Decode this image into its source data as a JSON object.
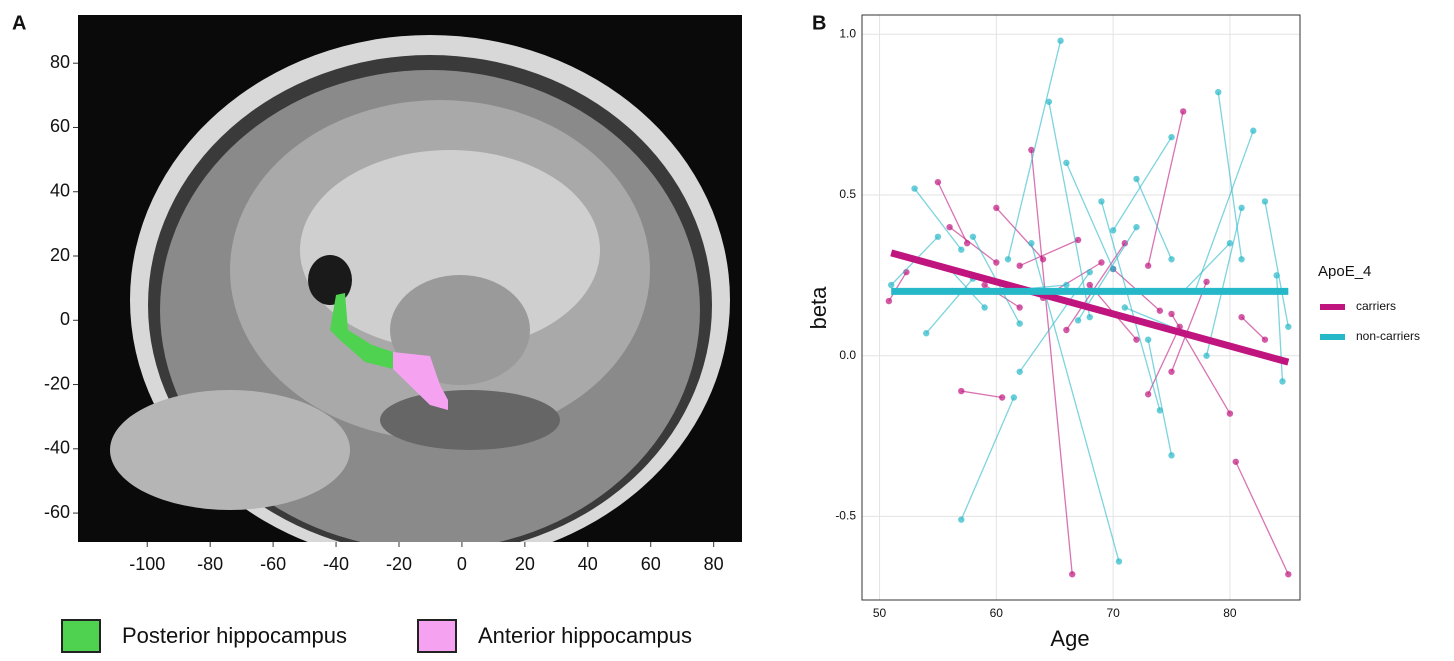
{
  "chart_data": [
    {
      "type": "image",
      "panel_label": "A",
      "xlim": [
        -122,
        89
      ],
      "ylim": [
        -69,
        95
      ],
      "xticks": [
        -100,
        -80,
        -60,
        -40,
        -20,
        0,
        20,
        40,
        60,
        80
      ],
      "yticks": [
        -60,
        -40,
        -20,
        0,
        20,
        40,
        60,
        80
      ],
      "regions": [
        {
          "name": "Posterior hippocampus",
          "color": "#4fd24f"
        },
        {
          "name": "Anterior hippocampus",
          "color": "#f5a3f0"
        }
      ]
    },
    {
      "type": "scatter",
      "panel_label": "B",
      "x_label": "Age",
      "y_label": "beta",
      "legend_title": "ApoE_4",
      "xlim": [
        48.5,
        86
      ],
      "ylim": [
        -0.76,
        1.06
      ],
      "xticks": [
        50,
        60,
        70,
        80
      ],
      "yticks": [
        -0.5,
        {
          "value": 0,
          "label": "0.0"
        },
        0.5,
        {
          "value": 1,
          "label": "1.0"
        }
      ],
      "grid": true,
      "series": [
        {
          "name": "carriers",
          "color": "#c0157f",
          "x": [
            50.8,
            52.3,
            55,
            57.5,
            57,
            60.5,
            60,
            64,
            59,
            62,
            66.5,
            63,
            66,
            71,
            68,
            72,
            62,
            67,
            75,
            80,
            76,
            73,
            80.5,
            85,
            81,
            83,
            64,
            69,
            78,
            75,
            70,
            74,
            73,
            75.7,
            56,
            60
          ],
          "values": [
            0.17,
            0.26,
            0.54,
            0.35,
            -0.11,
            -0.13,
            0.46,
            0.3,
            0.22,
            0.15,
            -0.68,
            0.64,
            0.08,
            0.35,
            0.22,
            0.05,
            0.28,
            0.36,
            0.13,
            -0.18,
            0.76,
            0.28,
            -0.33,
            -0.68,
            0.12,
            0.05,
            0.18,
            0.29,
            0.23,
            -0.05,
            0.27,
            0.14,
            -0.12,
            0.09,
            0.4,
            0.29
          ],
          "fit": {
            "x": [
              51,
              85
            ],
            "values": [
              0.32,
              -0.02
            ]
          }
        },
        {
          "name": "non-carriers",
          "color": "#26b8c8",
          "x": [
            65.5,
            61,
            57,
            61.5,
            79,
            81,
            75,
            70,
            64.5,
            68,
            82,
            77,
            70.5,
            63,
            75,
            73,
            51,
            55,
            53,
            57,
            58,
            62,
            60,
            66,
            67,
            72,
            72,
            75,
            69,
            74,
            83,
            85,
            84,
            84.5,
            76,
            80,
            62,
            68,
            56,
            59,
            66,
            70,
            78,
            81,
            71,
            77,
            54,
            58
          ],
          "values": [
            0.98,
            0.3,
            -0.51,
            -0.13,
            0.82,
            0.3,
            0.68,
            0.39,
            0.79,
            0.12,
            0.7,
            0.2,
            -0.64,
            0.35,
            -0.31,
            0.05,
            0.22,
            0.37,
            0.52,
            0.33,
            0.37,
            0.1,
            0.2,
            0.22,
            0.11,
            0.4,
            0.55,
            0.3,
            0.48,
            -0.17,
            0.48,
            0.09,
            0.25,
            -0.08,
            0.2,
            0.35,
            -0.05,
            0.26,
            0.27,
            0.15,
            0.6,
            0.27,
            0.0,
            0.46,
            0.15,
            0.06,
            0.07,
            0.24
          ],
          "fit": {
            "x": [
              51,
              85
            ],
            "values": [
              0.2,
              0.2
            ]
          }
        }
      ]
    }
  ]
}
